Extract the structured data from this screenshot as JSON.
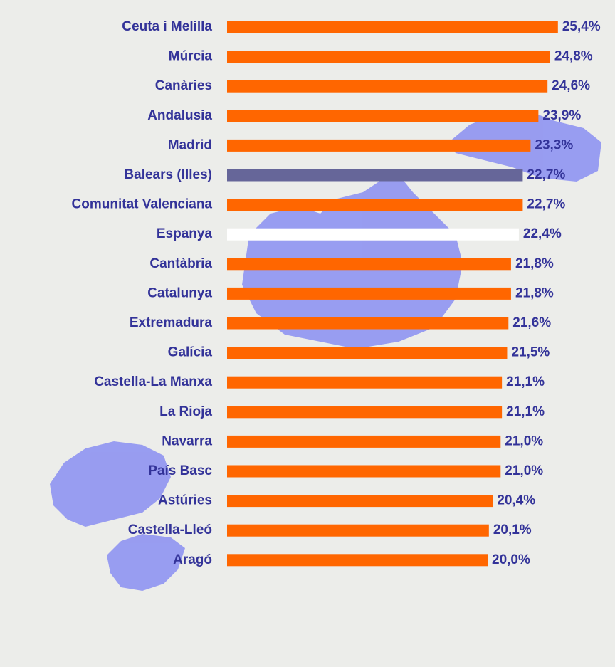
{
  "chart_data": {
    "type": "bar",
    "orientation": "horizontal",
    "categories": [
      "Ceuta i Melilla",
      "Múrcia",
      "Canàries",
      "Andalusia",
      "Madrid",
      "Balears (Illes)",
      "Comunitat Valenciana",
      "Espanya",
      "Cantàbria",
      "Catalunya",
      "Extremadura",
      "Galícia",
      "Castella-La Manxa",
      "La Rioja",
      "Navarra",
      "País Basc",
      "Astúries",
      "Castella-Lleó",
      "Aragó"
    ],
    "values": [
      25.4,
      24.8,
      24.6,
      23.9,
      23.3,
      22.7,
      22.7,
      22.4,
      21.8,
      21.8,
      21.6,
      21.5,
      21.1,
      21.1,
      21.0,
      21.0,
      20.4,
      20.1,
      20.0
    ],
    "value_labels": [
      "25,4%",
      "24,8%",
      "24,6%",
      "23,9%",
      "23,3%",
      "22,7%",
      "22,7%",
      "22,4%",
      "21,8%",
      "21,8%",
      "21,6%",
      "21,5%",
      "21,1%",
      "21,1%",
      "21,0%",
      "21,0%",
      "20,4%",
      "20,1%",
      "20,0%"
    ],
    "colors": [
      "#ff6600",
      "#ff6600",
      "#ff6600",
      "#ff6600",
      "#ff6600",
      "#666699",
      "#ff6600",
      "#ffffff",
      "#ff6600",
      "#ff6600",
      "#ff6600",
      "#ff6600",
      "#ff6600",
      "#ff6600",
      "#ff6600",
      "#ff6600",
      "#ff6600",
      "#ff6600",
      "#ff6600"
    ]
  }
}
